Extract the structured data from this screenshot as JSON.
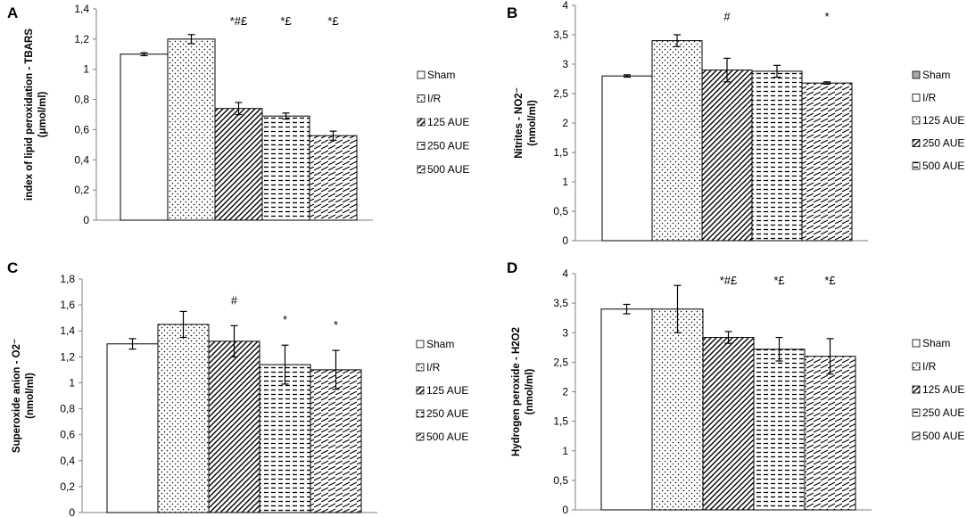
{
  "figure": {
    "legend_labels": [
      "Sham",
      "I/R",
      "125 AUE",
      "250 AUE",
      "500 AUE"
    ]
  },
  "chart_data": [
    {
      "panel": "A",
      "type": "bar",
      "ylabel_line1": "index of lipid peroxidation - TBARS",
      "ylabel_line2": "(μmol/ml)",
      "categories": [
        "Sham",
        "I/R",
        "125 AUE",
        "250 AUE",
        "500 AUE"
      ],
      "values": [
        1.1,
        1.2,
        0.74,
        0.69,
        0.56
      ],
      "errors": [
        0.01,
        0.03,
        0.04,
        0.02,
        0.03
      ],
      "significance": [
        "",
        "",
        "*#£",
        "*£",
        "*£"
      ],
      "ylim": [
        0,
        1.4
      ],
      "ytick_labels": [
        "0",
        "0,2",
        "0,4",
        "0,6",
        "0,8",
        "1",
        "1,2",
        "1,4"
      ],
      "legend_position": "right",
      "legend_solid_first": false
    },
    {
      "panel": "B",
      "type": "bar",
      "ylabel_line1": "Nitrites - NO2⁻",
      "ylabel_line2": "(nmol/ml)",
      "categories": [
        "Sham",
        "I/R",
        "125 AUE",
        "250 AUE",
        "500 AUE"
      ],
      "values": [
        2.8,
        3.4,
        2.9,
        2.88,
        2.68
      ],
      "errors": [
        0.02,
        0.1,
        0.2,
        0.1,
        0.02
      ],
      "significance": [
        "",
        "",
        "#",
        "",
        "*"
      ],
      "ylim": [
        0,
        4
      ],
      "ytick_labels": [
        "0",
        "0,5",
        "1",
        "1,5",
        "2",
        "2,5",
        "3",
        "3,5",
        "4"
      ],
      "legend_position": "right",
      "legend_solid_first": true
    },
    {
      "panel": "C",
      "type": "bar",
      "ylabel_line1": "Superoxide anion - O2⁻",
      "ylabel_line2": "(nmol/ml)",
      "categories": [
        "Sham",
        "I/R",
        "125 AUE",
        "250 AUE",
        "500 AUE"
      ],
      "values": [
        1.3,
        1.45,
        1.32,
        1.14,
        1.1
      ],
      "errors": [
        0.04,
        0.1,
        0.12,
        0.15,
        0.15
      ],
      "significance": [
        "",
        "",
        "#",
        "*",
        "*"
      ],
      "ylim": [
        0,
        1.8
      ],
      "ytick_labels": [
        "0",
        "0,2",
        "0,4",
        "0,6",
        "0,8",
        "1",
        "1,2",
        "1,4",
        "1,6",
        "1,8"
      ],
      "legend_position": "right",
      "legend_solid_first": false
    },
    {
      "panel": "D",
      "type": "bar",
      "ylabel_line1": "Hydrogen peroxide - H2O2",
      "ylabel_line2": "(nmol/ml)",
      "categories": [
        "Sham",
        "I/R",
        "125 AUE",
        "250 AUE",
        "500 AUE"
      ],
      "values": [
        3.4,
        3.4,
        2.92,
        2.72,
        2.6
      ],
      "errors": [
        0.08,
        0.4,
        0.1,
        0.2,
        0.3
      ],
      "significance": [
        "",
        "",
        "*#£",
        "*£",
        "*£"
      ],
      "ylim": [
        0,
        4
      ],
      "ytick_labels": [
        "0",
        "0,5",
        "1",
        "1,5",
        "2",
        "2,5",
        "3",
        "3,5",
        "4"
      ],
      "legend_position": "right",
      "legend_solid_first": false
    }
  ]
}
